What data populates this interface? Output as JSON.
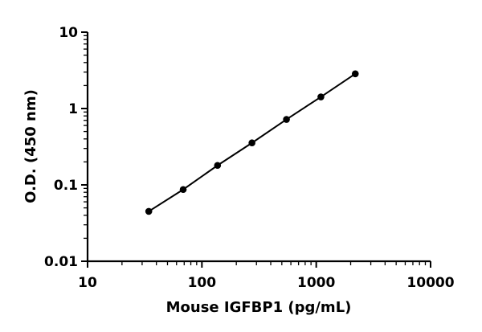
{
  "chart_data": {
    "type": "scatter",
    "title": "",
    "xlabel": "Mouse IGFBP1 (pg/mL)",
    "ylabel": "O.D. (450 nm)",
    "x_scale": "log",
    "y_scale": "log",
    "xlim": [
      10,
      10000
    ],
    "ylim": [
      0.01,
      10
    ],
    "x_tick_labels": [
      "10",
      "100",
      "1000",
      "10000"
    ],
    "y_tick_labels": [
      "0.01",
      "0.1",
      "1",
      "10"
    ],
    "grid": false,
    "legend": "none",
    "fit_line": true,
    "series": [
      {
        "x": [
          34.3,
          68.6,
          137,
          274,
          549,
          1098,
          2195
        ],
        "y": [
          0.045,
          0.087,
          0.18,
          0.355,
          0.72,
          1.42,
          2.85
        ]
      }
    ]
  }
}
